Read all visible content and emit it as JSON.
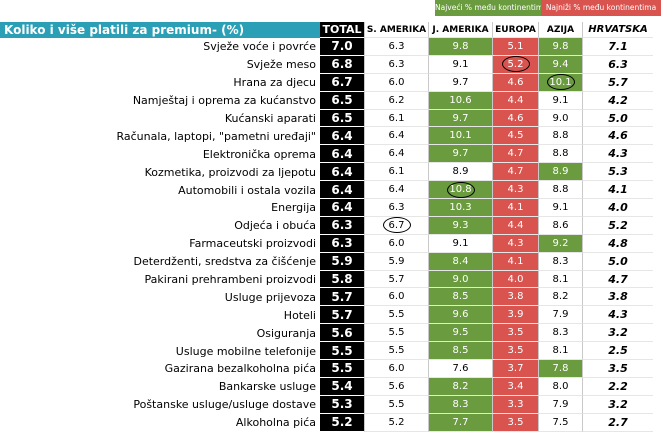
{
  "legend": {
    "max_label": "Najveći % među kontinentima",
    "min_label": "Najniži % među kontinentima",
    "max_color": "#6a9b3e",
    "min_color": "#d9534f"
  },
  "chart_data": {
    "type": "table",
    "title": "Koliko i više platili za premium- (%)",
    "columns": [
      "TOTAL",
      "S. AMERIKA",
      "J. AMERIKA",
      "EUROPA",
      "AZIJA",
      "HRVATSKA"
    ],
    "rows": [
      {
        "category": "Svježe voće i povrće",
        "values": [
          "7.0",
          "6.3",
          "9.8",
          "5.1",
          "9.8",
          "7.1"
        ],
        "highlight": [
          null,
          null,
          "max",
          "min",
          "max",
          null
        ],
        "circled": []
      },
      {
        "category": "Svježe meso",
        "values": [
          "6.8",
          "6.3",
          "9.1",
          "5.2",
          "9.4",
          "6.3"
        ],
        "highlight": [
          null,
          null,
          null,
          "min",
          "max",
          null
        ],
        "circled": [
          "EUROPA"
        ]
      },
      {
        "category": "Hrana za djecu",
        "values": [
          "6.7",
          "6.0",
          "9.7",
          "4.6",
          "10.1",
          "5.7"
        ],
        "highlight": [
          null,
          null,
          null,
          "min",
          "max",
          null
        ],
        "circled": [
          "AZIJA"
        ]
      },
      {
        "category": "Namještaj i oprema za kućanstvo",
        "values": [
          "6.5",
          "6.2",
          "10.6",
          "4.4",
          "9.1",
          "4.2"
        ],
        "highlight": [
          null,
          null,
          "max",
          "min",
          null,
          null
        ],
        "circled": []
      },
      {
        "category": "Kućanski aparati",
        "values": [
          "6.5",
          "6.1",
          "9.7",
          "4.6",
          "9.0",
          "5.0"
        ],
        "highlight": [
          null,
          null,
          "max",
          "min",
          null,
          null
        ],
        "circled": []
      },
      {
        "category": "Računala, laptopi, \"pametni uređaji\"",
        "values": [
          "6.4",
          "6.4",
          "10.1",
          "4.5",
          "8.8",
          "4.6"
        ],
        "highlight": [
          null,
          null,
          "max",
          "min",
          null,
          null
        ],
        "circled": []
      },
      {
        "category": "Elektronička oprema",
        "values": [
          "6.4",
          "6.4",
          "9.7",
          "4.7",
          "8.8",
          "4.3"
        ],
        "highlight": [
          null,
          null,
          "max",
          "min",
          null,
          null
        ],
        "circled": []
      },
      {
        "category": "Kozmetika, proizvodi za ljepotu",
        "values": [
          "6.4",
          "6.1",
          "8.9",
          "4.7",
          "8.9",
          "5.3"
        ],
        "highlight": [
          null,
          null,
          null,
          "min",
          "max",
          null
        ],
        "circled": []
      },
      {
        "category": "Automobili i ostala vozila",
        "values": [
          "6.4",
          "6.4",
          "10.8",
          "4.3",
          "8.8",
          "4.1"
        ],
        "highlight": [
          null,
          null,
          "max",
          "min",
          null,
          null
        ],
        "circled": [
          "J. AMERIKA"
        ]
      },
      {
        "category": "Energija",
        "values": [
          "6.4",
          "6.3",
          "10.3",
          "4.1",
          "9.1",
          "4.0"
        ],
        "highlight": [
          null,
          null,
          "max",
          "min",
          null,
          null
        ],
        "circled": []
      },
      {
        "category": "Odjeća i obuća",
        "values": [
          "6.3",
          "6.7",
          "9.3",
          "4.4",
          "8.6",
          "5.2"
        ],
        "highlight": [
          null,
          null,
          "max",
          "min",
          null,
          null
        ],
        "circled": [
          "S. AMERIKA"
        ]
      },
      {
        "category": "Farmaceutski proizvodi",
        "values": [
          "6.3",
          "6.0",
          "9.1",
          "4.3",
          "9.2",
          "4.8"
        ],
        "highlight": [
          null,
          null,
          null,
          "min",
          "max",
          null
        ],
        "circled": []
      },
      {
        "category": "Deterdženti, sredstva za čišćenje",
        "values": [
          "5.9",
          "5.9",
          "8.4",
          "4.1",
          "8.3",
          "5.0"
        ],
        "highlight": [
          null,
          null,
          "max",
          "min",
          null,
          null
        ],
        "circled": []
      },
      {
        "category": "Pakirani prehrambeni proizvodi",
        "values": [
          "5.8",
          "5.7",
          "9.0",
          "4.0",
          "8.1",
          "4.7"
        ],
        "highlight": [
          null,
          null,
          "max",
          "min",
          null,
          null
        ],
        "circled": []
      },
      {
        "category": "Usluge prijevoza",
        "values": [
          "5.7",
          "6.0",
          "8.5",
          "3.8",
          "8.2",
          "3.8"
        ],
        "highlight": [
          null,
          null,
          "max",
          "min",
          null,
          null
        ],
        "circled": []
      },
      {
        "category": "Hoteli",
        "values": [
          "5.7",
          "5.5",
          "9.6",
          "3.9",
          "7.9",
          "4.3"
        ],
        "highlight": [
          null,
          null,
          "max",
          "min",
          null,
          null
        ],
        "circled": []
      },
      {
        "category": "Osiguranja",
        "values": [
          "5.6",
          "5.5",
          "9.5",
          "3.5",
          "8.3",
          "3.2"
        ],
        "highlight": [
          null,
          null,
          "max",
          "min",
          null,
          null
        ],
        "circled": []
      },
      {
        "category": "Usluge mobilne telefonije",
        "values": [
          "5.5",
          "5.5",
          "8.5",
          "3.5",
          "8.1",
          "2.5"
        ],
        "highlight": [
          null,
          null,
          "max",
          "min",
          null,
          null
        ],
        "circled": []
      },
      {
        "category": "Gazirana bezalkoholna pića",
        "values": [
          "5.5",
          "6.0",
          "7.6",
          "3.7",
          "7.8",
          "3.5"
        ],
        "highlight": [
          null,
          null,
          null,
          "min",
          "max",
          null
        ],
        "circled": []
      },
      {
        "category": "Bankarske usluge",
        "values": [
          "5.4",
          "5.6",
          "8.2",
          "3.4",
          "8.0",
          "2.2"
        ],
        "highlight": [
          null,
          null,
          "max",
          "min",
          null,
          null
        ],
        "circled": []
      },
      {
        "category": "Poštanske usluge/usluge dostave",
        "values": [
          "5.3",
          "5.5",
          "8.3",
          "3.3",
          "7.9",
          "3.2"
        ],
        "highlight": [
          null,
          null,
          "max",
          "min",
          null,
          null
        ],
        "circled": []
      },
      {
        "category": "Alkoholna pića",
        "values": [
          "5.2",
          "5.2",
          "7.7",
          "3.5",
          "7.5",
          "2.7"
        ],
        "highlight": [
          null,
          null,
          "max",
          "min",
          null,
          null
        ],
        "circled": []
      }
    ]
  }
}
